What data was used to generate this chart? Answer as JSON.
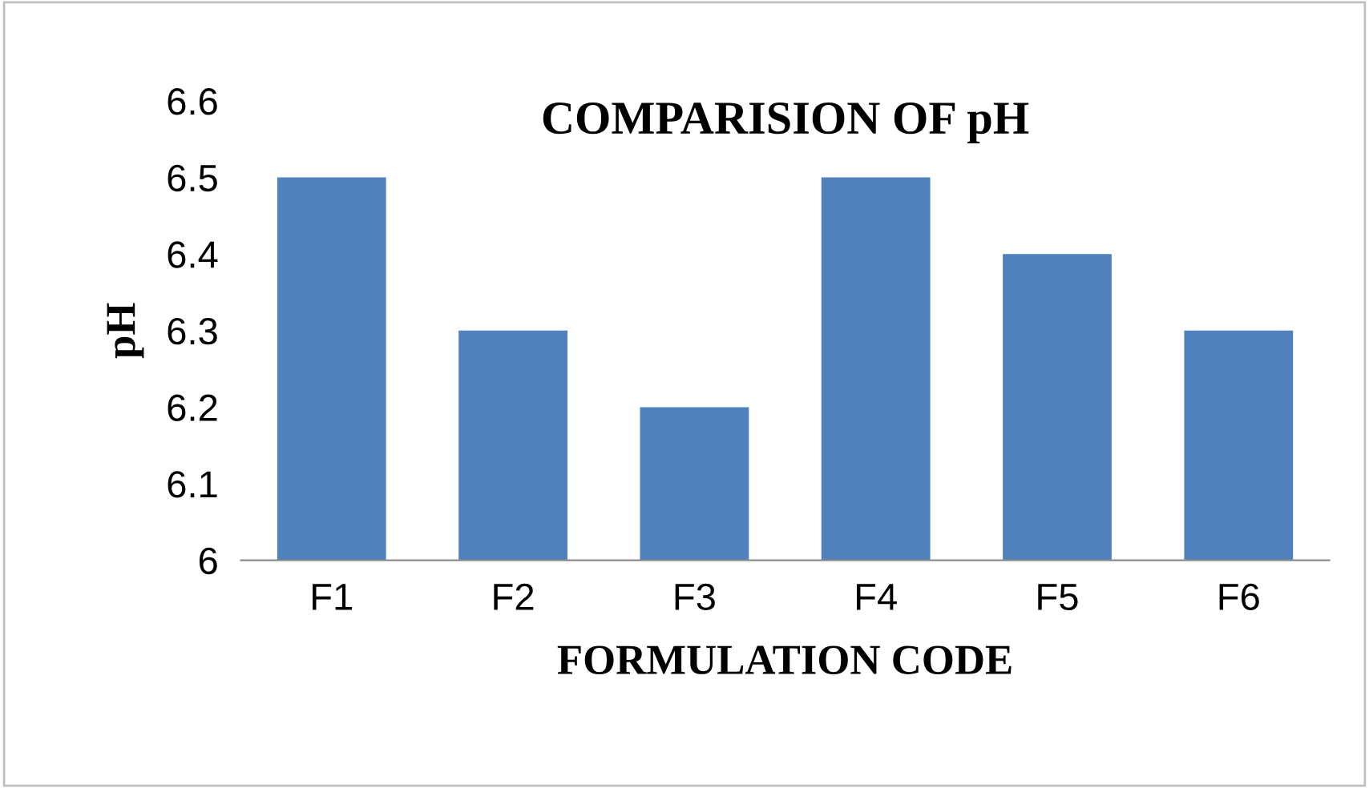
{
  "chart_data": {
    "type": "bar",
    "title": "COMPARISION OF pH",
    "xlabel": "FORMULATION CODE",
    "ylabel": "pH",
    "categories": [
      "F1",
      "F2",
      "F3",
      "F4",
      "F5",
      "F6"
    ],
    "values": [
      6.5,
      6.3,
      6.2,
      6.5,
      6.4,
      6.3
    ],
    "color": "#4f81bd",
    "ylim": [
      6,
      6.6
    ],
    "yticks": [
      6,
      6.1,
      6.2,
      6.3,
      6.4,
      6.5,
      6.6
    ],
    "grid": false,
    "legend": false
  }
}
